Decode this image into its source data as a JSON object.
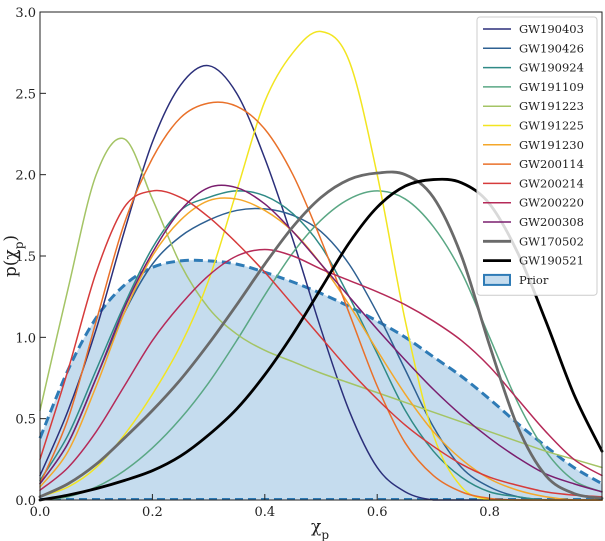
{
  "chart_data": {
    "type": "line",
    "title": "",
    "xlabel": "χ_p",
    "ylabel": "p(χ_p)",
    "xlim": [
      0.0,
      1.0
    ],
    "ylim": [
      0.0,
      3.0
    ],
    "xticks": [
      "0.0",
      "0.2",
      "0.4",
      "0.6",
      "0.8"
    ],
    "xtick_values": [
      0.0,
      0.2,
      0.4,
      0.6,
      0.8
    ],
    "yticks": [
      "0.0",
      "0.5",
      "1.0",
      "1.5",
      "2.0",
      "2.5",
      "3.0"
    ],
    "ytick_values": [
      0.0,
      0.5,
      1.0,
      1.5,
      2.0,
      2.5,
      3.0
    ],
    "legend_position": "top-right",
    "x": [
      0.0,
      0.05,
      0.1,
      0.15,
      0.2,
      0.25,
      0.3,
      0.35,
      0.4,
      0.45,
      0.5,
      0.55,
      0.6,
      0.65,
      0.7,
      0.75,
      0.8,
      0.85,
      0.9,
      0.95,
      1.0
    ],
    "series": [
      {
        "name": "GW190403",
        "color": "#2b2f7a",
        "width": 1.5,
        "values": [
          0.15,
          0.55,
          1.05,
          1.65,
          2.2,
          2.55,
          2.67,
          2.5,
          2.1,
          1.6,
          1.05,
          0.55,
          0.2,
          0.05,
          0.0,
          0.0,
          0.0,
          0.0,
          0.0,
          0.0,
          0.0
        ]
      },
      {
        "name": "GW190426",
        "color": "#2e6092",
        "width": 1.5,
        "values": [
          0.1,
          0.35,
          0.75,
          1.15,
          1.45,
          1.62,
          1.72,
          1.78,
          1.79,
          1.75,
          1.65,
          1.45,
          1.15,
          0.8,
          0.45,
          0.2,
          0.08,
          0.02,
          0.0,
          0.0,
          0.0
        ]
      },
      {
        "name": "GW190924",
        "color": "#2f8a86",
        "width": 1.5,
        "values": [
          0.12,
          0.4,
          0.8,
          1.2,
          1.55,
          1.78,
          1.86,
          1.9,
          1.87,
          1.76,
          1.56,
          1.25,
          0.9,
          0.55,
          0.3,
          0.14,
          0.05,
          0.02,
          0.0,
          0.0,
          0.0
        ]
      },
      {
        "name": "GW191109",
        "color": "#5aa784",
        "width": 1.5,
        "values": [
          0.0,
          0.02,
          0.08,
          0.18,
          0.32,
          0.5,
          0.72,
          0.98,
          1.26,
          1.52,
          1.72,
          1.85,
          1.9,
          1.85,
          1.68,
          1.4,
          1.0,
          0.6,
          0.3,
          0.12,
          0.05
        ]
      },
      {
        "name": "GW191223",
        "color": "#a4c465",
        "width": 1.5,
        "values": [
          0.55,
          1.3,
          2.0,
          2.22,
          1.85,
          1.45,
          1.18,
          1.02,
          0.92,
          0.85,
          0.78,
          0.72,
          0.66,
          0.6,
          0.54,
          0.48,
          0.42,
          0.36,
          0.3,
          0.25,
          0.2
        ]
      },
      {
        "name": "GW191225",
        "color": "#f2e520",
        "width": 1.5,
        "values": [
          0.02,
          0.08,
          0.2,
          0.4,
          0.65,
          0.95,
          1.35,
          1.9,
          2.45,
          2.75,
          2.88,
          2.7,
          2.0,
          1.1,
          0.4,
          0.08,
          0.0,
          0.0,
          0.0,
          0.0,
          0.0
        ]
      },
      {
        "name": "GW191230",
        "color": "#f4a72a",
        "width": 1.5,
        "values": [
          0.08,
          0.3,
          0.7,
          1.15,
          1.5,
          1.72,
          1.84,
          1.85,
          1.78,
          1.65,
          1.45,
          1.2,
          0.92,
          0.65,
          0.42,
          0.25,
          0.13,
          0.06,
          0.02,
          0.0,
          0.0
        ]
      },
      {
        "name": "GW200114",
        "color": "#e9712a",
        "width": 1.5,
        "values": [
          0.1,
          0.5,
          1.1,
          1.7,
          2.1,
          2.35,
          2.44,
          2.42,
          2.28,
          2.0,
          1.6,
          1.15,
          0.7,
          0.35,
          0.15,
          0.05,
          0.01,
          0.0,
          0.0,
          0.0,
          0.0
        ]
      },
      {
        "name": "GW200214",
        "color": "#d63b3b",
        "width": 1.5,
        "values": [
          0.25,
          0.8,
          1.4,
          1.8,
          1.9,
          1.86,
          1.74,
          1.58,
          1.4,
          1.2,
          1.0,
          0.8,
          0.62,
          0.46,
          0.33,
          0.22,
          0.14,
          0.09,
          0.05,
          0.03,
          0.02
        ]
      },
      {
        "name": "GW200220",
        "color": "#b52a58",
        "width": 1.5,
        "values": [
          0.06,
          0.2,
          0.42,
          0.7,
          0.98,
          1.2,
          1.38,
          1.5,
          1.54,
          1.5,
          1.42,
          1.35,
          1.28,
          1.2,
          1.1,
          0.98,
          0.82,
          0.62,
          0.42,
          0.25,
          0.15
        ]
      },
      {
        "name": "GW200308",
        "color": "#7a1e6e",
        "width": 1.5,
        "values": [
          0.1,
          0.35,
          0.75,
          1.18,
          1.52,
          1.78,
          1.92,
          1.92,
          1.82,
          1.65,
          1.45,
          1.25,
          1.05,
          0.86,
          0.68,
          0.52,
          0.38,
          0.26,
          0.16,
          0.1,
          0.05
        ]
      },
      {
        "name": "GW170502",
        "color": "#6a6a6a",
        "width": 2.8,
        "values": [
          0.02,
          0.1,
          0.22,
          0.38,
          0.55,
          0.74,
          0.96,
          1.2,
          1.45,
          1.68,
          1.86,
          1.97,
          2.01,
          2.0,
          1.86,
          1.5,
          0.95,
          0.45,
          0.15,
          0.04,
          0.01
        ]
      },
      {
        "name": "GW190521",
        "color": "#000000",
        "width": 2.8,
        "values": [
          0.0,
          0.03,
          0.07,
          0.12,
          0.18,
          0.27,
          0.4,
          0.56,
          0.77,
          1.02,
          1.3,
          1.58,
          1.8,
          1.93,
          1.97,
          1.95,
          1.82,
          1.52,
          1.1,
          0.65,
          0.3
        ]
      }
    ],
    "prior": {
      "name": "Prior",
      "color": "#2e7bb6",
      "fill": "#c5dcee",
      "values": [
        0.38,
        0.8,
        1.12,
        1.32,
        1.43,
        1.47,
        1.47,
        1.45,
        1.4,
        1.34,
        1.27,
        1.19,
        1.1,
        1.0,
        0.88,
        0.76,
        0.62,
        0.47,
        0.33,
        0.2,
        0.1
      ]
    }
  }
}
